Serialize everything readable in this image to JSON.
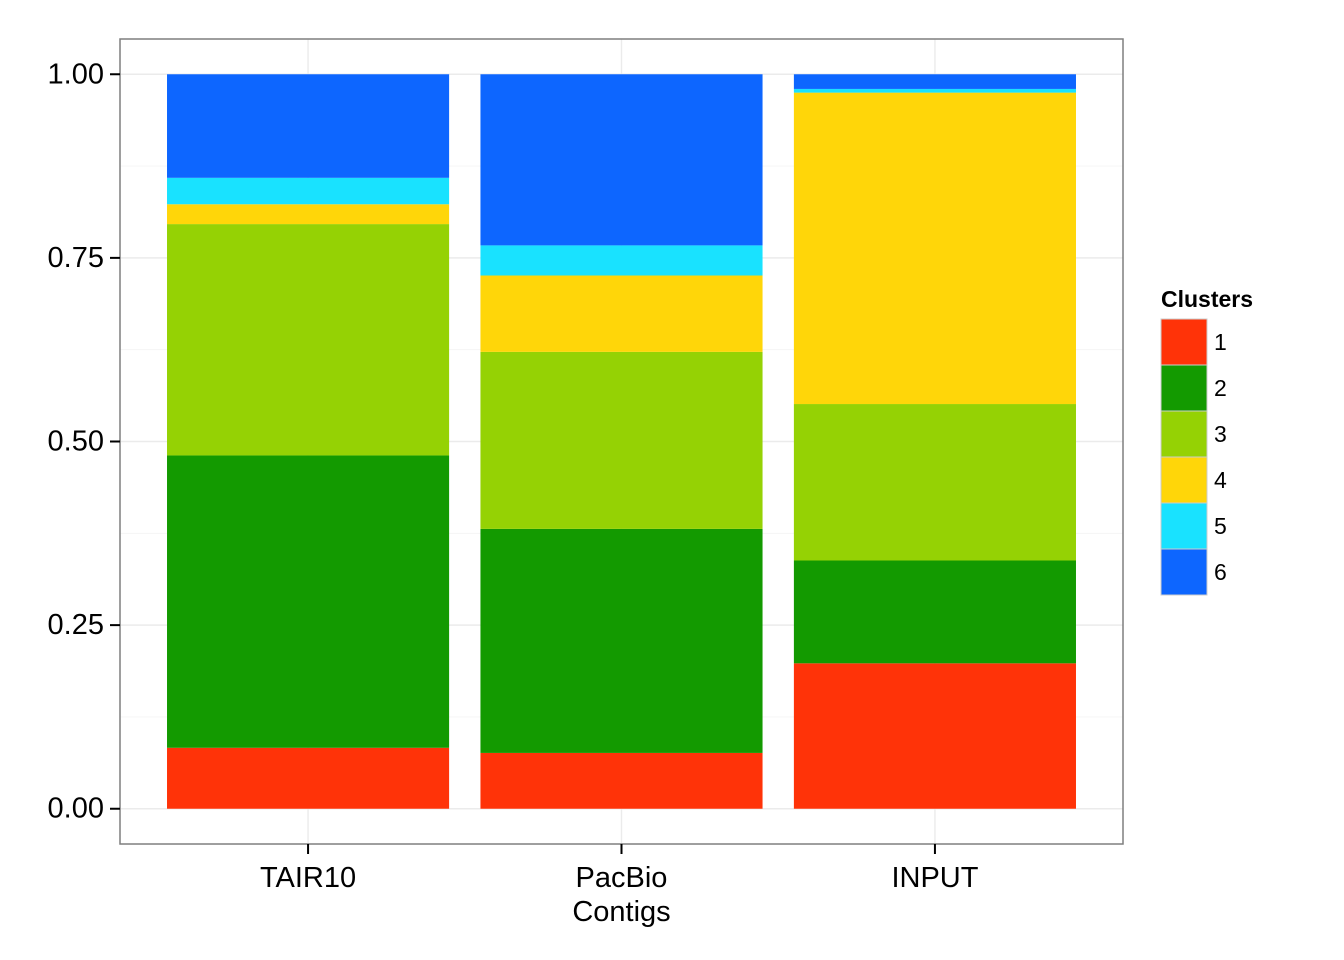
{
  "chart_data": {
    "type": "bar",
    "stacked": true,
    "normalized": true,
    "categories": [
      [
        "TAIR10"
      ],
      [
        "PacBio",
        "Contigs"
      ],
      [
        "INPUT"
      ]
    ],
    "series": [
      {
        "name": "1",
        "color": "#FF3308",
        "values": [
          0.083,
          0.076,
          0.198
        ]
      },
      {
        "name": "2",
        "color": "#139A00",
        "values": [
          0.398,
          0.305,
          0.14
        ]
      },
      {
        "name": "3",
        "color": "#95D204",
        "values": [
          0.315,
          0.241,
          0.213
        ]
      },
      {
        "name": "4",
        "color": "#FFD609",
        "values": [
          0.027,
          0.104,
          0.424
        ]
      },
      {
        "name": "5",
        "color": "#19E2FF",
        "values": [
          0.036,
          0.041,
          0.005
        ]
      },
      {
        "name": "6",
        "color": "#0D66FF",
        "values": [
          0.141,
          0.233,
          0.02
        ]
      }
    ],
    "ylim": [
      -0.048,
      1.048
    ],
    "yticks": [
      "0.00",
      "0.25",
      "0.50",
      "0.75",
      "1.00"
    ],
    "ytick_values": [
      0,
      0.25,
      0.5,
      0.75,
      1.0
    ],
    "xlabel": "",
    "ylabel": "",
    "legend": {
      "title": "Clusters",
      "placement": "right"
    },
    "grid": true
  }
}
